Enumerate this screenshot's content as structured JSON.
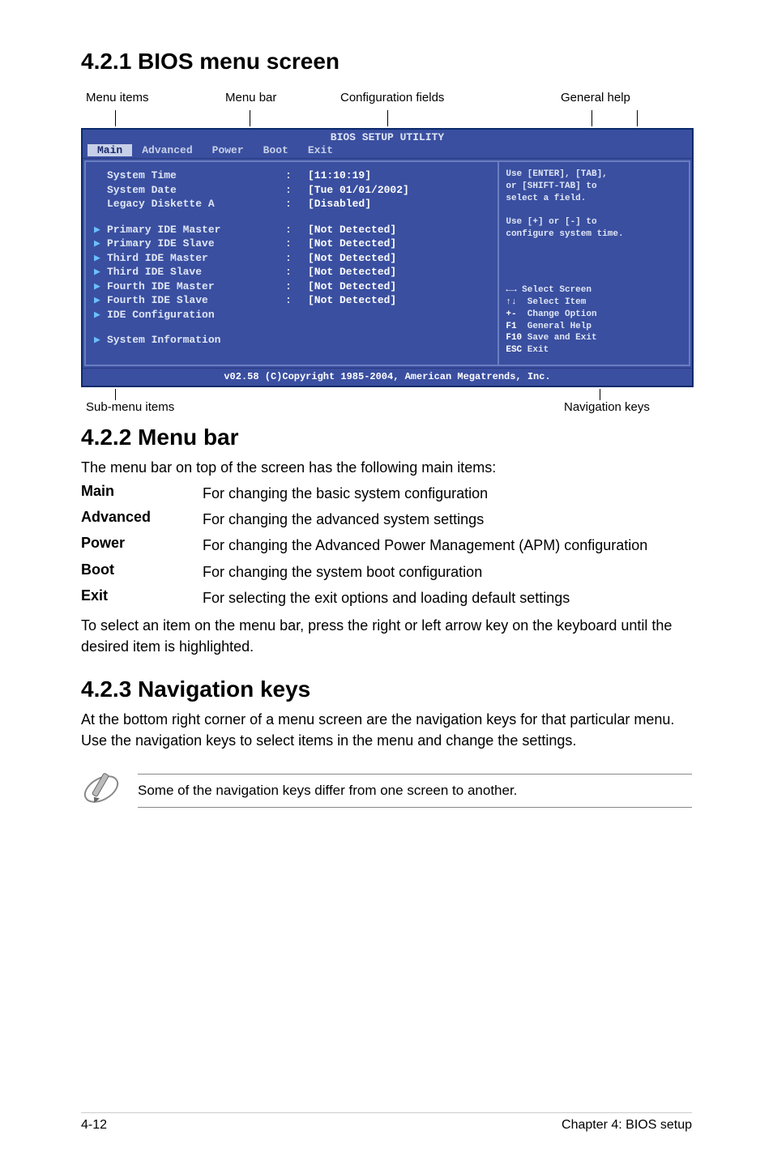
{
  "headings": {
    "h1": "4.2.1 BIOS menu screen",
    "h2": "4.2.2 Menu bar",
    "h3": "4.2.3 Navigation keys"
  },
  "top_labels": {
    "menu_items": "Menu items",
    "menu_bar": "Menu bar",
    "config_fields": "Configuration fields",
    "general_help": "General help"
  },
  "bios": {
    "title": "BIOS SETUP UTILITY",
    "menu": {
      "main": "Main",
      "advanced": "Advanced",
      "power": "Power",
      "boot": "Boot",
      "exit": "Exit"
    },
    "rows_top": [
      {
        "label": "System Time",
        "value": "[11:10:19]"
      },
      {
        "label": "System Date",
        "value": "[Tue 01/01/2002]"
      },
      {
        "label": "Legacy Diskette A",
        "value": "[Disabled]"
      }
    ],
    "rows_mid": [
      {
        "label": "Primary IDE Master",
        "value": "[Not Detected]"
      },
      {
        "label": "Primary IDE Slave",
        "value": "[Not Detected]"
      },
      {
        "label": "Third IDE Master",
        "value": "[Not Detected]"
      },
      {
        "label": "Third IDE Slave",
        "value": "[Not Detected]"
      },
      {
        "label": "Fourth IDE Master",
        "value": "[Not Detected]"
      },
      {
        "label": "Fourth IDE Slave",
        "value": "[Not Detected]"
      },
      {
        "label": "IDE Configuration",
        "value": ""
      }
    ],
    "rows_bot": [
      {
        "label": "System Information",
        "value": ""
      }
    ],
    "help_top": [
      "Use [ENTER], [TAB],",
      "or [SHIFT-TAB] to",
      "select a field.",
      "",
      "Use [+] or [-] to",
      "configure system time."
    ],
    "help_nav": [
      {
        "sym": "←→",
        "txt": " Select Screen"
      },
      {
        "sym": "↑↓",
        "txt": "  Select Item"
      },
      {
        "sym": "+-",
        "txt": "  Change Option"
      },
      {
        "sym": "F1",
        "txt": "  General Help"
      },
      {
        "sym": "F10",
        "txt": " Save and Exit"
      },
      {
        "sym": "ESC",
        "txt": " Exit"
      }
    ],
    "footer": "v02.58 (C)Copyright 1985-2004, American Megatrends, Inc."
  },
  "bottom_labels": {
    "submenu": "Sub-menu items",
    "navkeys": "Navigation keys"
  },
  "menu_bar_intro": "The menu bar on top of the screen has the following main items:",
  "definitions": [
    {
      "term": "Main",
      "desc": "For changing the basic system configuration"
    },
    {
      "term": "Advanced",
      "desc": "For changing the advanced system settings"
    },
    {
      "term": "Power",
      "desc": "For changing the Advanced Power Management (APM) configuration"
    },
    {
      "term": "Boot",
      "desc": "For changing the system boot configuration"
    },
    {
      "term": "Exit",
      "desc": "For selecting the exit options and loading default settings"
    }
  ],
  "menu_bar_outro": "To select an item on the menu bar, press the right or left arrow key on the keyboard until the desired item is highlighted.",
  "nav_keys_text": "At the bottom right corner of a menu screen are the navigation keys for that particular menu. Use the navigation keys to select items in the menu and change the settings.",
  "note_text": "Some of the navigation keys differ from one screen to another.",
  "footer": {
    "left": "4-12",
    "right": "Chapter 4: BIOS setup"
  }
}
